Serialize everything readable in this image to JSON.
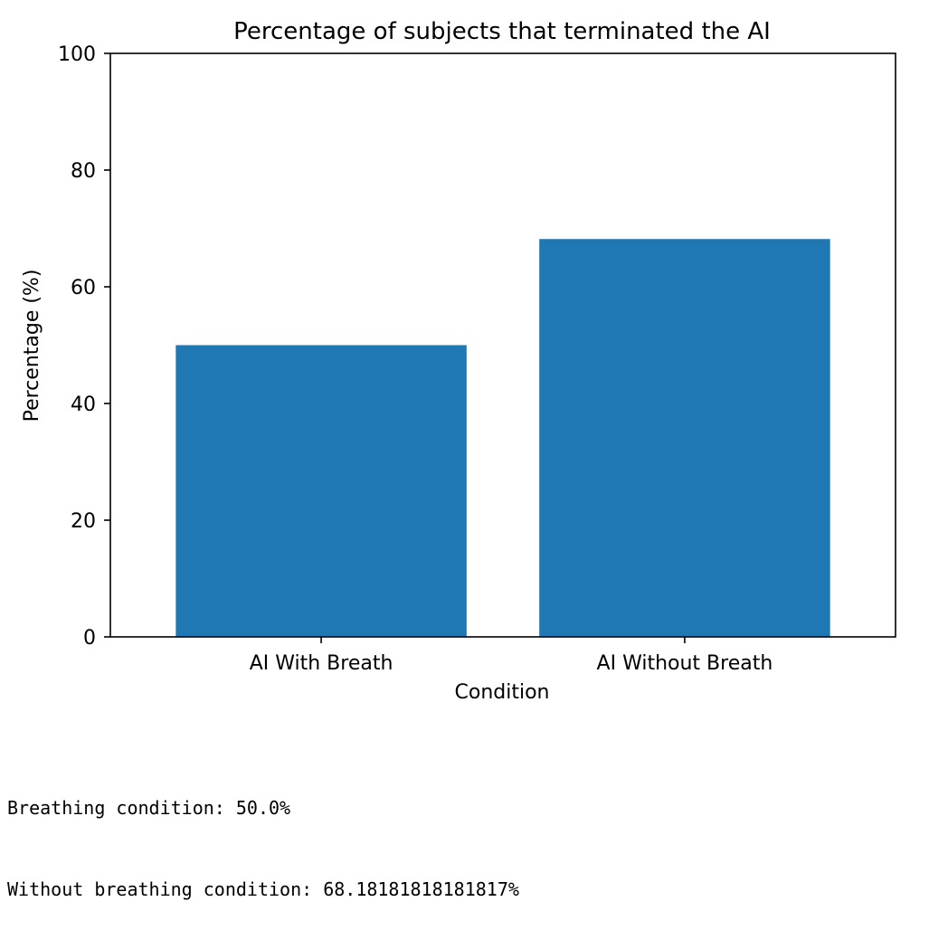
{
  "chart_data": {
    "type": "bar",
    "title": "Percentage of subjects that terminated the AI",
    "xlabel": "Condition",
    "ylabel": "Percentage (%)",
    "categories": [
      "AI With Breath",
      "AI Without Breath"
    ],
    "values": [
      50.0,
      68.18181818181817
    ],
    "ylim": [
      0,
      100
    ],
    "yticks": [
      0,
      20,
      40,
      60,
      80,
      100
    ],
    "grid": false,
    "bar_color": "#1f77b4"
  },
  "console": {
    "lines": [
      "Breathing condition: 50.0%",
      "Without breathing condition: 68.18181818181817%"
    ]
  }
}
